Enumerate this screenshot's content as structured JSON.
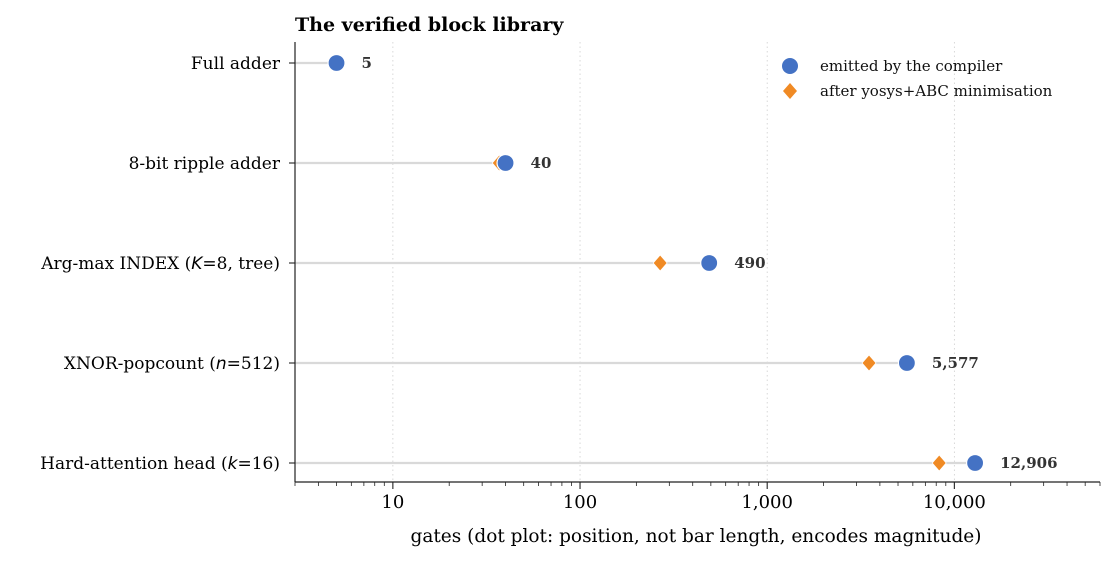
{
  "chart_data": {
    "type": "scatter",
    "title": "The verified block library",
    "xlabel": "gates  (dot plot: position, not bar length, encodes magnitude)",
    "ylabel": "",
    "xscale": "log",
    "xlim": [
      3,
      60000
    ],
    "xticks": [
      {
        "value": 10,
        "label": "10"
      },
      {
        "value": 100,
        "label": "100"
      },
      {
        "value": 1000,
        "label": "1,000"
      },
      {
        "value": 10000,
        "label": "10,000"
      }
    ],
    "grid": "vertical, dotted",
    "legend_position": "top-right",
    "categories": [
      {
        "text": "Full adder"
      },
      {
        "text": "8-bit ripple adder"
      },
      {
        "pre": "Arg-max INDEX (",
        "var": "K",
        "post": "=8, tree)"
      },
      {
        "pre": "XNOR-popcount (",
        "var": "n",
        "post": "=512)"
      },
      {
        "pre": "Hard-attention head (",
        "var": "k",
        "post": "=16)"
      }
    ],
    "series": [
      {
        "name": "emitted by the compiler",
        "marker": "circle",
        "color": "#4472C4",
        "values": [
          5,
          40,
          490,
          5577,
          12906
        ]
      },
      {
        "name": "after yosys+ABC minimisation",
        "marker": "diamond",
        "color": "#F08A24",
        "values": [
          null,
          37,
          268,
          3500,
          8300
        ]
      }
    ],
    "value_labels": [
      "5",
      "40",
      "490",
      "5,577",
      "12,906"
    ]
  }
}
